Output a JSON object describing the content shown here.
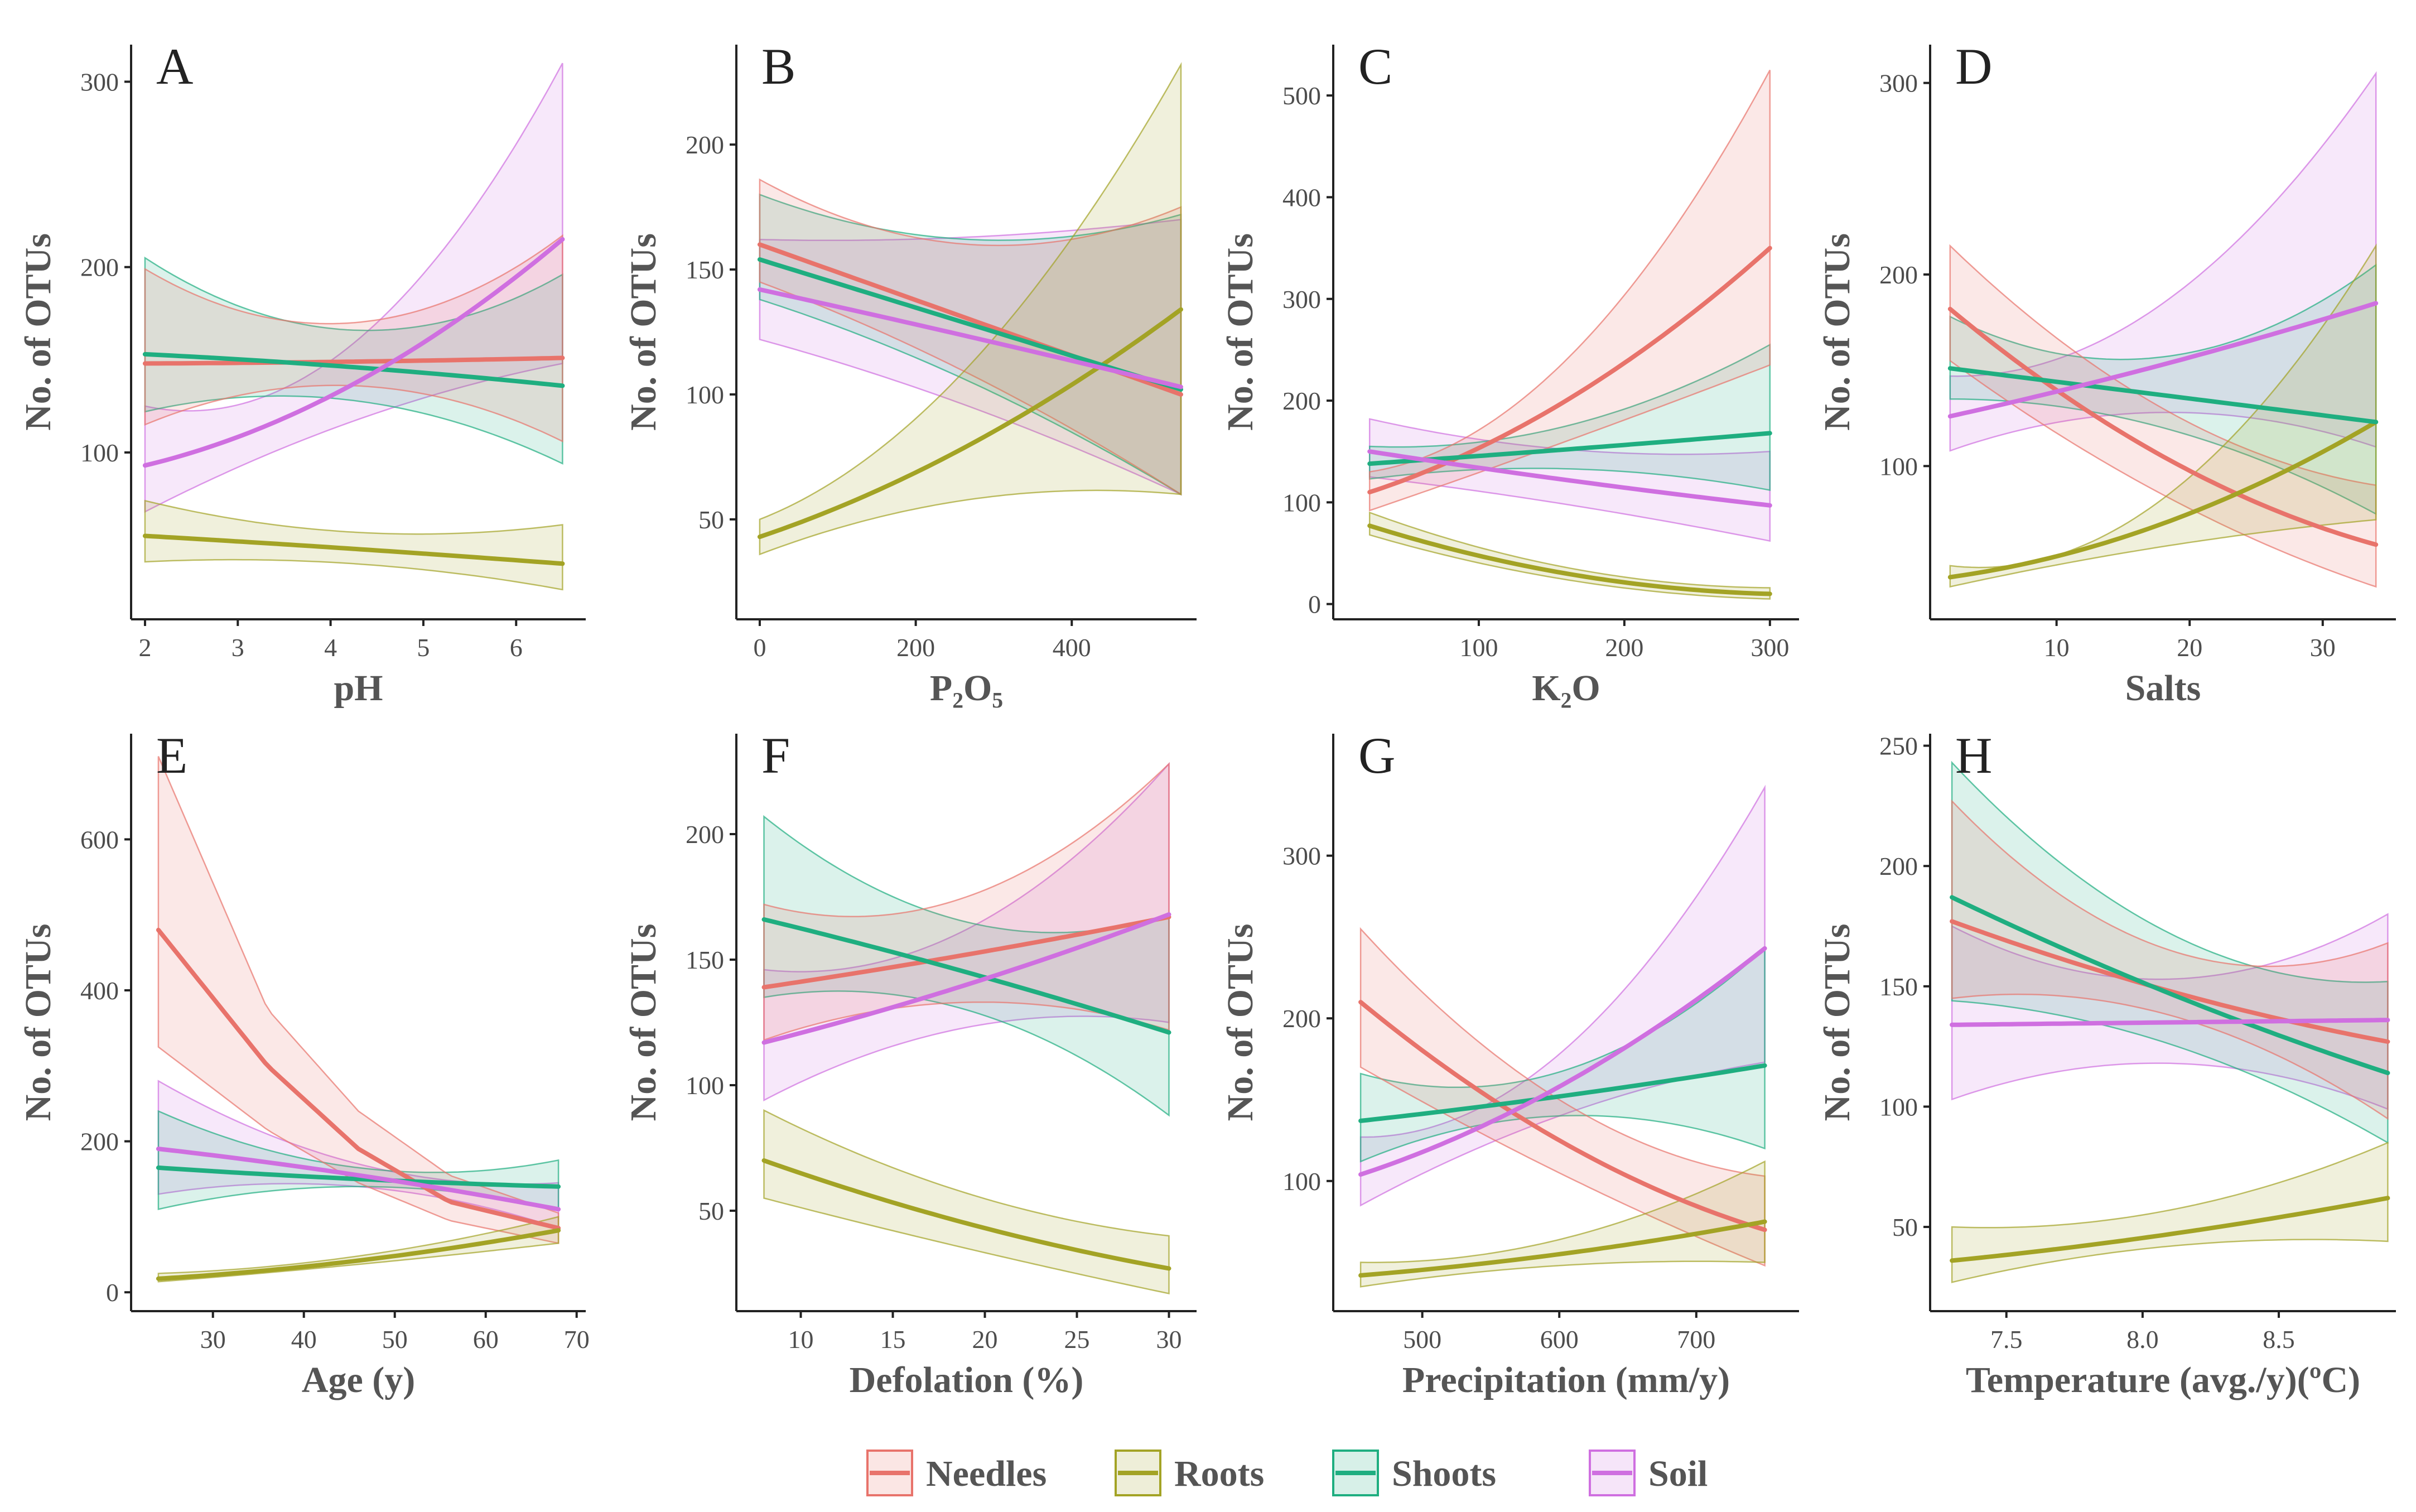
{
  "colors": {
    "Needles": "#e8736b",
    "Roots": "#a3a325",
    "Shoots": "#1fae80",
    "Soil": "#cf6fe0",
    "axis": "#222222",
    "text": "#555555"
  },
  "legend": [
    "Needles",
    "Roots",
    "Shoots",
    "Soil"
  ],
  "chart_data": [
    {
      "panel": "A",
      "type": "line",
      "title": "",
      "xlabel": "pH",
      "ylabel": "No. of OTUs",
      "xlim": [
        1.85,
        6.75
      ],
      "ylim": [
        10,
        320
      ],
      "xticks": [
        2,
        3,
        4,
        5,
        6
      ],
      "yticks": [
        100,
        200,
        300
      ],
      "series": [
        {
          "name": "Needles",
          "x": [
            2.0,
            4.25,
            6.5
          ],
          "y": [
            148,
            149,
            151
          ],
          "lower": [
            115,
            136,
            106
          ],
          "upper": [
            199,
            170,
            217
          ]
        },
        {
          "name": "Roots",
          "x": [
            2.0,
            4.25,
            6.5
          ],
          "y": [
            55,
            48,
            40
          ],
          "lower": [
            41,
            40,
            26
          ],
          "upper": [
            74,
            57,
            61
          ]
        },
        {
          "name": "Shoots",
          "x": [
            2.0,
            4.25,
            6.5
          ],
          "y": [
            153,
            146,
            136
          ],
          "lower": [
            122,
            128,
            94
          ],
          "upper": [
            205,
            166,
            196
          ]
        },
        {
          "name": "Soil",
          "x": [
            2.0,
            4.25,
            6.5
          ],
          "y": [
            93,
            137,
            215
          ],
          "lower": [
            68,
            117,
            148
          ],
          "upper": [
            125,
            159,
            310
          ]
        }
      ]
    },
    {
      "panel": "B",
      "type": "line",
      "title": "",
      "xlabel": "P₂O₅",
      "ylabel": "No. of OTUs",
      "xlim": [
        -30,
        560
      ],
      "ylim": [
        10,
        240
      ],
      "xticks": [
        0,
        200,
        400
      ],
      "yticks": [
        50,
        100,
        150,
        200
      ],
      "series": [
        {
          "name": "Needles",
          "x": [
            0,
            270,
            540
          ],
          "y": [
            160,
            130,
            100
          ],
          "lower": [
            145,
            108,
            60
          ],
          "upper": [
            186,
            160,
            175
          ]
        },
        {
          "name": "Roots",
          "x": [
            0,
            270,
            540
          ],
          "y": [
            43,
            80,
            134
          ],
          "lower": [
            36,
            58,
            60
          ],
          "upper": [
            50,
            112,
            232
          ]
        },
        {
          "name": "Shoots",
          "x": [
            0,
            270,
            540
          ],
          "y": [
            154,
            128,
            102
          ],
          "lower": [
            138,
            105,
            60
          ],
          "upper": [
            180,
            162,
            172
          ]
        },
        {
          "name": "Soil",
          "x": [
            0,
            270,
            540
          ],
          "y": [
            142,
            123,
            103
          ],
          "lower": [
            122,
            95,
            60
          ],
          "upper": [
            162,
            163,
            170
          ]
        }
      ]
    },
    {
      "panel": "C",
      "type": "line",
      "title": "",
      "xlabel": "K₂O",
      "ylabel": "No. of OTUs",
      "xlim": [
        0,
        320
      ],
      "ylim": [
        -15,
        550
      ],
      "xticks": [
        100,
        200,
        300
      ],
      "yticks": [
        0,
        100,
        200,
        300,
        400,
        500
      ],
      "series": [
        {
          "name": "Needles",
          "x": [
            25,
            160,
            300
          ],
          "y": [
            110,
            200,
            350
          ],
          "lower": [
            92,
            160,
            235
          ],
          "upper": [
            130,
            240,
            525
          ]
        },
        {
          "name": "Roots",
          "x": [
            25,
            160,
            300
          ],
          "y": [
            77,
            30,
            10
          ],
          "lower": [
            68,
            24,
            5
          ],
          "upper": [
            90,
            36,
            16
          ]
        },
        {
          "name": "Shoots",
          "x": [
            25,
            160,
            300
          ],
          "y": [
            138,
            152,
            168
          ],
          "lower": [
            123,
            133,
            112
          ],
          "upper": [
            155,
            175,
            255
          ]
        },
        {
          "name": "Soil",
          "x": [
            25,
            160,
            300
          ],
          "y": [
            150,
            122,
            97
          ],
          "lower": [
            125,
            98,
            62
          ],
          "upper": [
            182,
            152,
            150
          ]
        }
      ]
    },
    {
      "panel": "D",
      "type": "line",
      "title": "",
      "xlabel": "Salts",
      "ylabel": "No. of OTUs",
      "xlim": [
        0.5,
        35.5
      ],
      "ylim": [
        20,
        320
      ],
      "xticks": [
        10,
        20,
        30
      ],
      "yticks": [
        100,
        200,
        300
      ],
      "series": [
        {
          "name": "Needles",
          "x": [
            2,
            18,
            34
          ],
          "y": [
            182,
            105,
            59
          ],
          "lower": [
            155,
            85,
            37
          ],
          "upper": [
            215,
            130,
            90
          ]
        },
        {
          "name": "Roots",
          "x": [
            2,
            18,
            34
          ],
          "y": [
            42,
            70,
            123
          ],
          "lower": [
            37,
            58,
            72
          ],
          "upper": [
            48,
            83,
            215
          ]
        },
        {
          "name": "Shoots",
          "x": [
            2,
            18,
            34
          ],
          "y": [
            151,
            137,
            123
          ],
          "lower": [
            135,
            120,
            75
          ],
          "upper": [
            178,
            157,
            205
          ]
        },
        {
          "name": "Soil",
          "x": [
            2,
            18,
            34
          ],
          "y": [
            126,
            153,
            185
          ],
          "lower": [
            108,
            128,
            110
          ],
          "upper": [
            147,
            185,
            305
          ]
        }
      ]
    },
    {
      "panel": "E",
      "type": "line",
      "title": "",
      "xlabel": "Age (y)",
      "ylabel": "No. of OTUs",
      "xlim": [
        21,
        71
      ],
      "ylim": [
        -25,
        740
      ],
      "xticks": [
        30,
        40,
        50,
        60,
        70
      ],
      "yticks": [
        0,
        200,
        400,
        600
      ],
      "series": [
        {
          "name": "Needles",
          "x": [
            24,
            36,
            46,
            56,
            68
          ],
          "y": [
            480,
            300,
            190,
            120,
            85
          ],
          "lower": [
            325,
            215,
            145,
            95,
            65
          ],
          "upper": [
            710,
            375,
            240,
            155,
            105
          ]
        },
        {
          "name": "Roots",
          "x": [
            24,
            46,
            68
          ],
          "y": [
            18,
            42,
            82
          ],
          "lower": [
            14,
            37,
            65
          ],
          "upper": [
            25,
            48,
            100
          ]
        },
        {
          "name": "Shoots",
          "x": [
            24,
            46,
            68
          ],
          "y": [
            165,
            150,
            140
          ],
          "lower": [
            110,
            140,
            110
          ],
          "upper": [
            240,
            165,
            175
          ]
        },
        {
          "name": "Soil",
          "x": [
            24,
            46,
            68
          ],
          "y": [
            190,
            155,
            110
          ],
          "lower": [
            130,
            140,
            85
          ],
          "upper": [
            280,
            170,
            145
          ]
        }
      ]
    },
    {
      "panel": "F",
      "type": "line",
      "title": "",
      "xlabel": "Defolation (%)",
      "ylabel": "No. of OTUs",
      "xlim": [
        6.5,
        31.5
      ],
      "ylim": [
        10,
        240
      ],
      "xticks": [
        10,
        15,
        20,
        25,
        30
      ],
      "yticks": [
        50,
        100,
        150,
        200
      ],
      "series": [
        {
          "name": "Needles",
          "x": [
            8,
            19,
            30
          ],
          "y": [
            139,
            152,
            167
          ],
          "lower": [
            118,
            133,
            122
          ],
          "upper": [
            172,
            175,
            228
          ]
        },
        {
          "name": "Roots",
          "x": [
            8,
            19,
            30
          ],
          "y": [
            70,
            45,
            27
          ],
          "lower": [
            55,
            35,
            17
          ],
          "upper": [
            90,
            57,
            40
          ]
        },
        {
          "name": "Shoots",
          "x": [
            8,
            19,
            30
          ],
          "y": [
            166,
            145,
            121
          ],
          "lower": [
            135,
            130,
            88
          ],
          "upper": [
            207,
            165,
            168
          ]
        },
        {
          "name": "Soil",
          "x": [
            8,
            19,
            30
          ],
          "y": [
            117,
            140,
            168
          ],
          "lower": [
            94,
            123,
            125
          ],
          "upper": [
            146,
            162,
            228
          ]
        }
      ]
    },
    {
      "panel": "G",
      "type": "line",
      "title": "",
      "xlabel": "Precipitation (mm/y)",
      "ylabel": "No. of OTUs",
      "xlim": [
        435,
        775
      ],
      "ylim": [
        20,
        375
      ],
      "xticks": [
        500,
        600,
        700
      ],
      "yticks": [
        100,
        200,
        300
      ],
      "series": [
        {
          "name": "Needles",
          "x": [
            455,
            600,
            750
          ],
          "y": [
            210,
            125,
            70
          ],
          "lower": [
            170,
            105,
            48
          ],
          "upper": [
            255,
            150,
            103
          ]
        },
        {
          "name": "Roots",
          "x": [
            455,
            600,
            750
          ],
          "y": [
            42,
            55,
            75
          ],
          "lower": [
            35,
            48,
            50
          ],
          "upper": [
            50,
            64,
            112
          ]
        },
        {
          "name": "Shoots",
          "x": [
            455,
            600,
            750
          ],
          "y": [
            137,
            152,
            171
          ],
          "lower": [
            112,
            140,
            120
          ],
          "upper": [
            166,
            167,
            243
          ]
        },
        {
          "name": "Soil",
          "x": [
            455,
            600,
            750
          ],
          "y": [
            104,
            158,
            243
          ],
          "lower": [
            85,
            140,
            173
          ],
          "upper": [
            127,
            178,
            342
          ]
        }
      ]
    },
    {
      "panel": "H",
      "type": "line",
      "title": "",
      "xlabel": "Temperature (avg./y)(ºC)",
      "ylabel": "No. of OTUs",
      "xlim": [
        7.22,
        8.93
      ],
      "ylim": [
        15,
        255
      ],
      "xticks": [
        7.5,
        8.0,
        8.5
      ],
      "yticks": [
        50,
        100,
        150,
        200,
        250
      ],
      "series": [
        {
          "name": "Needles",
          "x": [
            7.3,
            8.1,
            8.9
          ],
          "y": [
            177,
            148,
            127
          ],
          "lower": [
            145,
            138,
            95
          ],
          "upper": [
            227,
            165,
            168
          ]
        },
        {
          "name": "Roots",
          "x": [
            7.3,
            8.1,
            8.9
          ],
          "y": [
            36,
            47,
            62
          ],
          "lower": [
            27,
            42,
            44
          ],
          "upper": [
            50,
            57,
            85
          ]
        },
        {
          "name": "Shoots",
          "x": [
            7.3,
            8.1,
            8.9
          ],
          "y": [
            187,
            147,
            114
          ],
          "lower": [
            144,
            126,
            85
          ],
          "upper": [
            243,
            172,
            152
          ]
        },
        {
          "name": "Soil",
          "x": [
            7.3,
            8.1,
            8.9
          ],
          "y": [
            134,
            135,
            136
          ],
          "lower": [
            103,
            118,
            99
          ],
          "upper": [
            175,
            153,
            180
          ]
        }
      ]
    }
  ]
}
